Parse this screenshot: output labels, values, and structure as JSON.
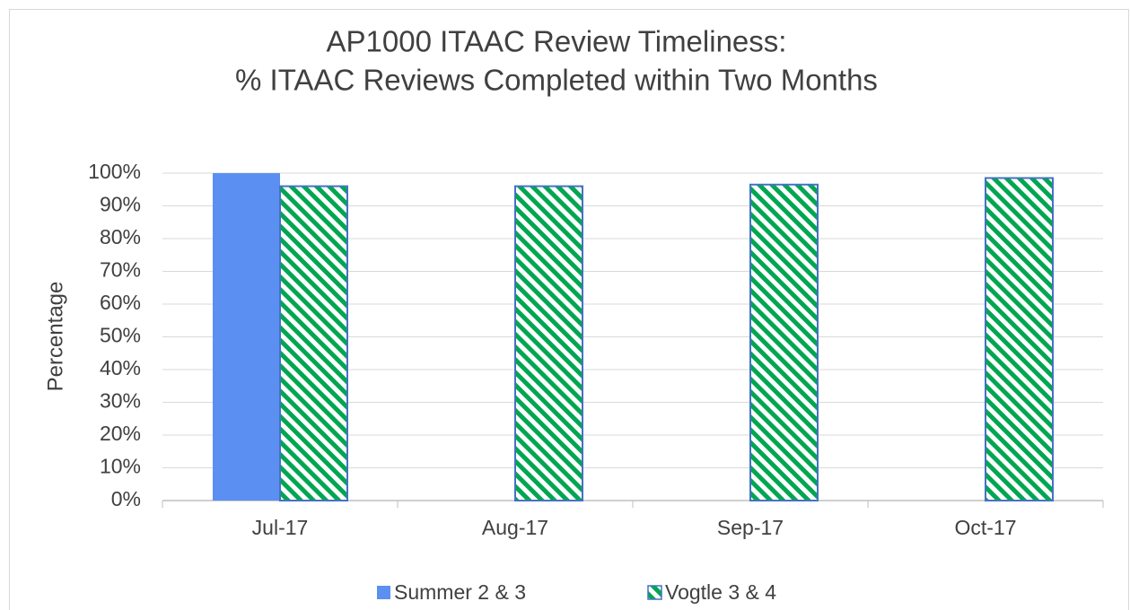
{
  "chart_data": {
    "type": "bar",
    "title": [
      "AP1000 ITAAC Review Timeliness:",
      "% ITAAC Reviews Completed within Two Months"
    ],
    "y_label": "Percentage",
    "categories": [
      "Jul-17",
      "Aug-17",
      "Sep-17",
      "Oct-17"
    ],
    "series": [
      {
        "name": "Summer 2 & 3",
        "color": "#5b8ff2",
        "values": [
          100,
          null,
          null,
          null
        ]
      },
      {
        "name": "Vogtle 3 & 4",
        "color": "#00a651",
        "pattern": "diagonal-stripes",
        "values": [
          96,
          96,
          96.5,
          98.5
        ]
      }
    ],
    "ylim": [
      0,
      100
    ],
    "yticks": [
      {
        "value": 0,
        "label": "0%"
      },
      {
        "value": 10,
        "label": "10%"
      },
      {
        "value": 20,
        "label": "20%"
      },
      {
        "value": 30,
        "label": "30%"
      },
      {
        "value": 40,
        "label": "40%"
      },
      {
        "value": 50,
        "label": "50%"
      },
      {
        "value": 60,
        "label": "60%"
      },
      {
        "value": 70,
        "label": "70%"
      },
      {
        "value": 80,
        "label": "80%"
      },
      {
        "value": 90,
        "label": "90%"
      },
      {
        "value": 100,
        "label": "100%"
      }
    ],
    "grid": true,
    "legend": "bottom"
  }
}
